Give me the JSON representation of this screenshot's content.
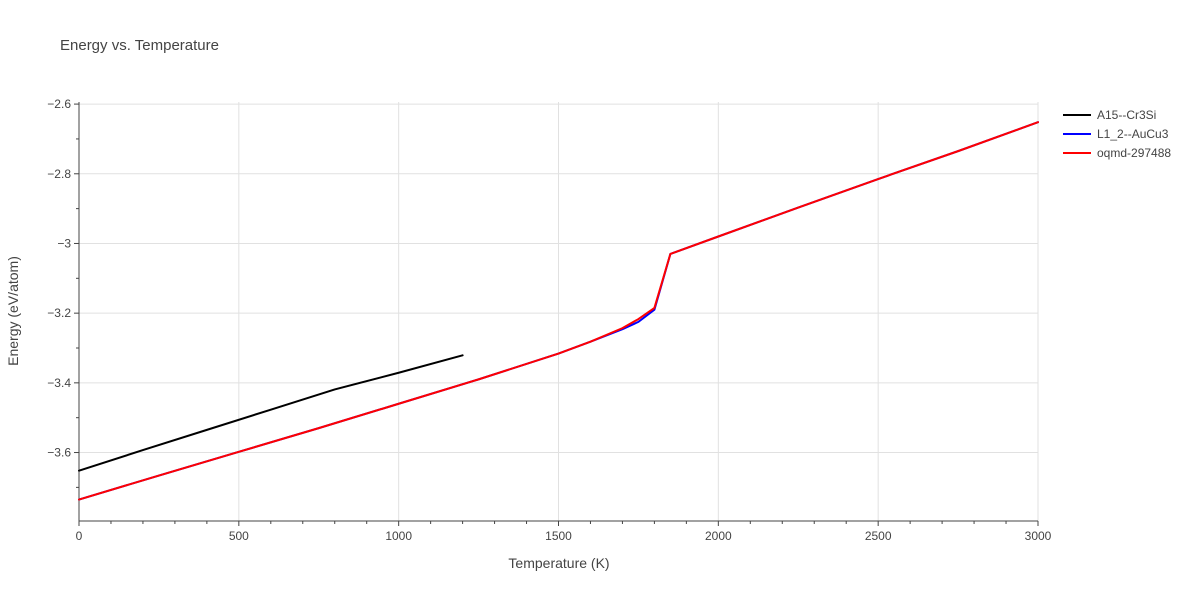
{
  "chart_data": {
    "type": "line",
    "title": "Energy vs. Temperature",
    "xlabel": "Temperature (K)",
    "ylabel": "Energy (eV/atom)",
    "xlim": [
      0,
      3000
    ],
    "ylim": [
      -3.7965,
      -2.594
    ],
    "x_ticks": [
      0,
      500,
      1000,
      1500,
      2000,
      2500,
      3000
    ],
    "x_tick_labels": [
      "0",
      "500",
      "1000",
      "1500",
      "2000",
      "2500",
      "3000"
    ],
    "y_ticks": [
      -3.6,
      -3.4,
      -3.2,
      -3.0,
      -2.8,
      -2.6
    ],
    "y_tick_labels": [
      "−3.6",
      "−3.4",
      "−3.2",
      "−3",
      "−2.8",
      "−2.6"
    ],
    "grid": true,
    "legend_position": "top-right",
    "series": [
      {
        "name": "A15--Cr3Si",
        "color": "#000000",
        "x": [
          0,
          200,
          400,
          600,
          800,
          1000,
          1200
        ],
        "y": [
          -3.652,
          -3.593,
          -3.535,
          -3.477,
          -3.419,
          -3.371,
          -3.321
        ]
      },
      {
        "name": "L1_2--AuCu3",
        "color": "#0000ff",
        "x": [
          0,
          250,
          500,
          750,
          1000,
          1250,
          1500,
          1600,
          1700,
          1750,
          1800,
          1850,
          2000,
          2250,
          2500,
          2750,
          3000
        ],
        "y": [
          -3.735,
          -3.666,
          -3.598,
          -3.53,
          -3.46,
          -3.39,
          -3.316,
          -3.282,
          -3.246,
          -3.225,
          -3.19,
          -3.03,
          -2.98,
          -2.897,
          -2.815,
          -2.735,
          -2.652
        ]
      },
      {
        "name": "oqmd-297488",
        "color": "#ff0000",
        "x": [
          0,
          250,
          500,
          750,
          1000,
          1250,
          1500,
          1600,
          1700,
          1750,
          1800,
          1850,
          2000,
          2250,
          2500,
          2750,
          3000
        ],
        "y": [
          -3.735,
          -3.666,
          -3.598,
          -3.53,
          -3.46,
          -3.39,
          -3.316,
          -3.282,
          -3.243,
          -3.217,
          -3.185,
          -3.03,
          -2.98,
          -2.897,
          -2.815,
          -2.735,
          -2.652
        ]
      }
    ]
  }
}
